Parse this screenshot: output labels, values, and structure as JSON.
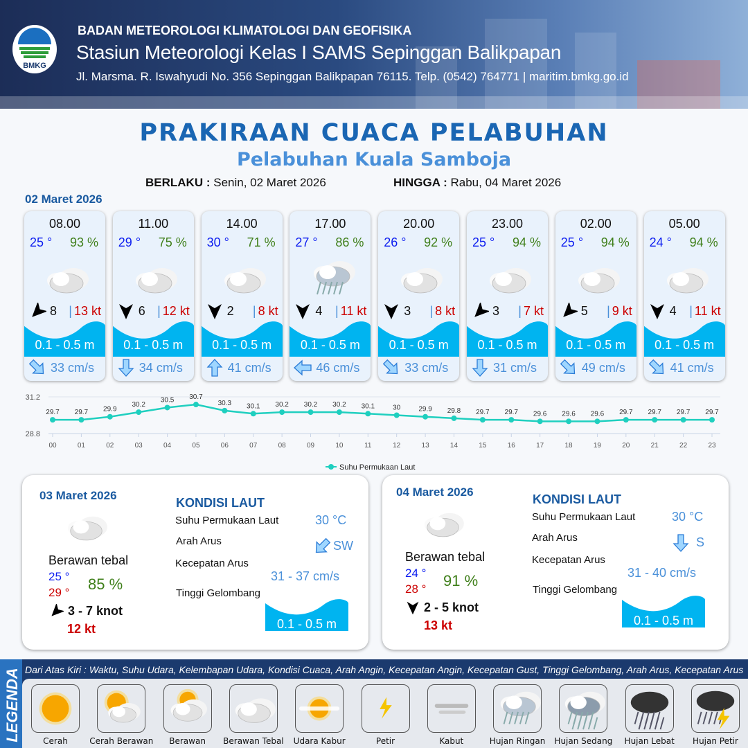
{
  "header": {
    "org": "BADAN METEOROLOGI KLIMATOLOGI DAN GEOFISIKA",
    "station": "Stasiun Meteorologi Kelas I SAMS Sepinggan Balikpapan",
    "address": "Jl. Marsma. R. Iswahyudi No. 356 Sepinggan Balikpapan 76115. Telp. (0542) 764771 | maritim.bmkg.go.id",
    "logo_text": "BMKG"
  },
  "title": "PRAKIRAAN CUACA PELABUHAN",
  "subtitle": "Pelabuhan Kuala Samboja",
  "validity": {
    "from_label": "BERLAKU :",
    "from": "Senin, 02 Maret 2026",
    "to_label": "HINGGA :",
    "to": "Rabu, 04 Maret 2026"
  },
  "day1": {
    "date": "02 Maret 2026",
    "cards": [
      {
        "time": "08.00",
        "temp": "25 °",
        "hum": "93 %",
        "weather": "berawan-tebal",
        "wind_dir_deg": 225,
        "wind": "8",
        "gust": "13 kt",
        "wave": "0.1 - 0.5 m",
        "current_dir": "SE",
        "current": "33 cm/s"
      },
      {
        "time": "11.00",
        "temp": "29 °",
        "hum": "75 %",
        "weather": "berawan-tebal",
        "wind_dir_deg": 180,
        "wind": "6",
        "gust": "12 kt",
        "wave": "0.1 - 0.5 m",
        "current_dir": "S",
        "current": "34 cm/s"
      },
      {
        "time": "14.00",
        "temp": "30 °",
        "hum": "71 %",
        "weather": "berawan-tebal",
        "wind_dir_deg": 180,
        "wind": "2",
        "gust": "8 kt",
        "wave": "0.1 - 0.5 m",
        "current_dir": "N",
        "current": "41 cm/s"
      },
      {
        "time": "17.00",
        "temp": "27 °",
        "hum": "86 %",
        "weather": "hujan-ringan",
        "wind_dir_deg": 180,
        "wind": "4",
        "gust": "11 kt",
        "wave": "0.1 - 0.5 m",
        "current_dir": "W",
        "current": "46 cm/s"
      },
      {
        "time": "20.00",
        "temp": "26 °",
        "hum": "92 %",
        "weather": "berawan-tebal",
        "wind_dir_deg": 180,
        "wind": "3",
        "gust": "8 kt",
        "wave": "0.1 - 0.5 m",
        "current_dir": "SE",
        "current": "33 cm/s"
      },
      {
        "time": "23.00",
        "temp": "25 °",
        "hum": "94 %",
        "weather": "berawan-tebal",
        "wind_dir_deg": 225,
        "wind": "3",
        "gust": "7 kt",
        "wave": "0.1 - 0.5 m",
        "current_dir": "S",
        "current": "31 cm/s"
      },
      {
        "time": "02.00",
        "temp": "25 °",
        "hum": "94 %",
        "weather": "berawan-tebal",
        "wind_dir_deg": 225,
        "wind": "5",
        "gust": "9 kt",
        "wave": "0.1 - 0.5 m",
        "current_dir": "SE",
        "current": "49 cm/s"
      },
      {
        "time": "05.00",
        "temp": "24 °",
        "hum": "94 %",
        "weather": "berawan-tebal",
        "wind_dir_deg": 180,
        "wind": "4",
        "gust": "11 kt",
        "wave": "0.1 - 0.5 m",
        "current_dir": "SE",
        "current": "41 cm/s"
      }
    ]
  },
  "chart_data": {
    "type": "line",
    "categories": [
      "00",
      "01",
      "02",
      "03",
      "04",
      "05",
      "06",
      "07",
      "08",
      "09",
      "10",
      "11",
      "12",
      "13",
      "14",
      "15",
      "16",
      "17",
      "18",
      "19",
      "20",
      "21",
      "22",
      "23"
    ],
    "series": [
      {
        "name": "Suhu Permukaan Laut",
        "values": [
          29.7,
          29.7,
          29.9,
          30.2,
          30.5,
          30.7,
          30.3,
          30.1,
          30.2,
          30.2,
          30.2,
          30.1,
          30.0,
          29.9,
          29.8,
          29.7,
          29.7,
          29.6,
          29.6,
          29.6,
          29.7,
          29.7,
          29.7,
          29.7
        ],
        "color": "#1fcfbf"
      }
    ],
    "ylim": [
      28.8,
      31.2
    ],
    "yticks": [
      "31.2",
      "28.8"
    ],
    "legend": "bottom-center",
    "grid": true,
    "data_labels": true
  },
  "days": [
    {
      "date": "03 Maret 2026",
      "weather": "Berawan tebal",
      "tmin": "25 °",
      "tmax": "29 °",
      "hum": "85 %",
      "wind": "3  - 7 knot",
      "gust": "12 kt",
      "wind_dir_deg": 225,
      "kondisi": "KONDISI LAUT",
      "sst_label": "Suhu Permukaan Laut",
      "sst": "30 °C",
      "arah_label": "Arah Arus",
      "arah": "SW",
      "kec_label": "Kecepatan Arus",
      "kec": "31  - 37 cm/s",
      "tg_label": "Tinggi Gelombang",
      "wave": "0.1 - 0.5 m"
    },
    {
      "date": "04 Maret 2026",
      "weather": "Berawan tebal",
      "tmin": "24 °",
      "tmax": "28 °",
      "hum": "91 %",
      "wind": "2  - 5 knot",
      "gust": "13 kt",
      "wind_dir_deg": 180,
      "kondisi": "KONDISI LAUT",
      "sst_label": "Suhu Permukaan Laut",
      "sst": "30 °C",
      "arah_label": "Arah Arus",
      "arah": "S",
      "kec_label": "Kecepatan Arus",
      "kec": "31  - 40 cm/s",
      "tg_label": "Tinggi Gelombang",
      "wave": "0.1 - 0.5 m"
    }
  ],
  "legend": {
    "title": "LEGENDA",
    "description": "Dari Atas Kiri : Waktu, Suhu Udara, Kelembapan Udara, Kondisi Cuaca, Arah Angin, Kecepatan Angin, Kecepatan Gust, Tinggi Gelombang, Arah Arus, Kecepatan Arus",
    "items": [
      {
        "label": "Cerah",
        "icon": "sun"
      },
      {
        "label": "Cerah Berawan",
        "icon": "sun-cloud"
      },
      {
        "label": "Berawan",
        "icon": "cloud-sun"
      },
      {
        "label": "Berawan Tebal",
        "icon": "cloud"
      },
      {
        "label": "Udara Kabur",
        "icon": "haze"
      },
      {
        "label": "Petir",
        "icon": "lightning"
      },
      {
        "label": "Kabut",
        "icon": "fog"
      },
      {
        "label": "Hujan Ringan",
        "icon": "rain-light"
      },
      {
        "label": "Hujan Sedang",
        "icon": "rain-moderate"
      },
      {
        "label": "Hujan Lebat",
        "icon": "rain-heavy"
      },
      {
        "label": "Hujan Petir",
        "icon": "thunderstorm"
      }
    ]
  },
  "colors": {
    "brand": "#1a66b3",
    "wave": "#00b4f0",
    "temp": "#0b1cf0",
    "humidity": "#3f7f1a",
    "gust": "#cc0000",
    "current": "#4a90d9"
  }
}
